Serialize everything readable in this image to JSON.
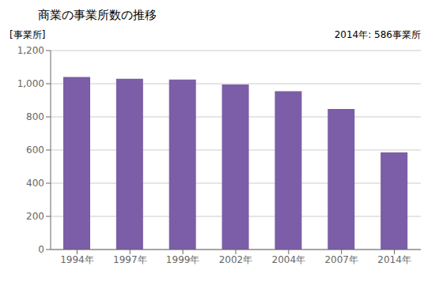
{
  "chart_data": {
    "type": "bar",
    "title": "商業の事業所数の推移",
    "ylabel": "[事業所]",
    "annotation": "2014年: 586事業所",
    "categories": [
      "1994年",
      "1997年",
      "1999年",
      "2002年",
      "2004年",
      "2007年",
      "2014年"
    ],
    "values": [
      1040,
      1030,
      1025,
      995,
      955,
      848,
      586
    ],
    "color": "#7B5EA7",
    "ylim": [
      0,
      1200
    ],
    "yticks": [
      0,
      200,
      400,
      600,
      800,
      {
        "value": 1000,
        "label": "1,000"
      },
      {
        "value": 1200,
        "label": "1,200"
      }
    ],
    "grid": true
  }
}
